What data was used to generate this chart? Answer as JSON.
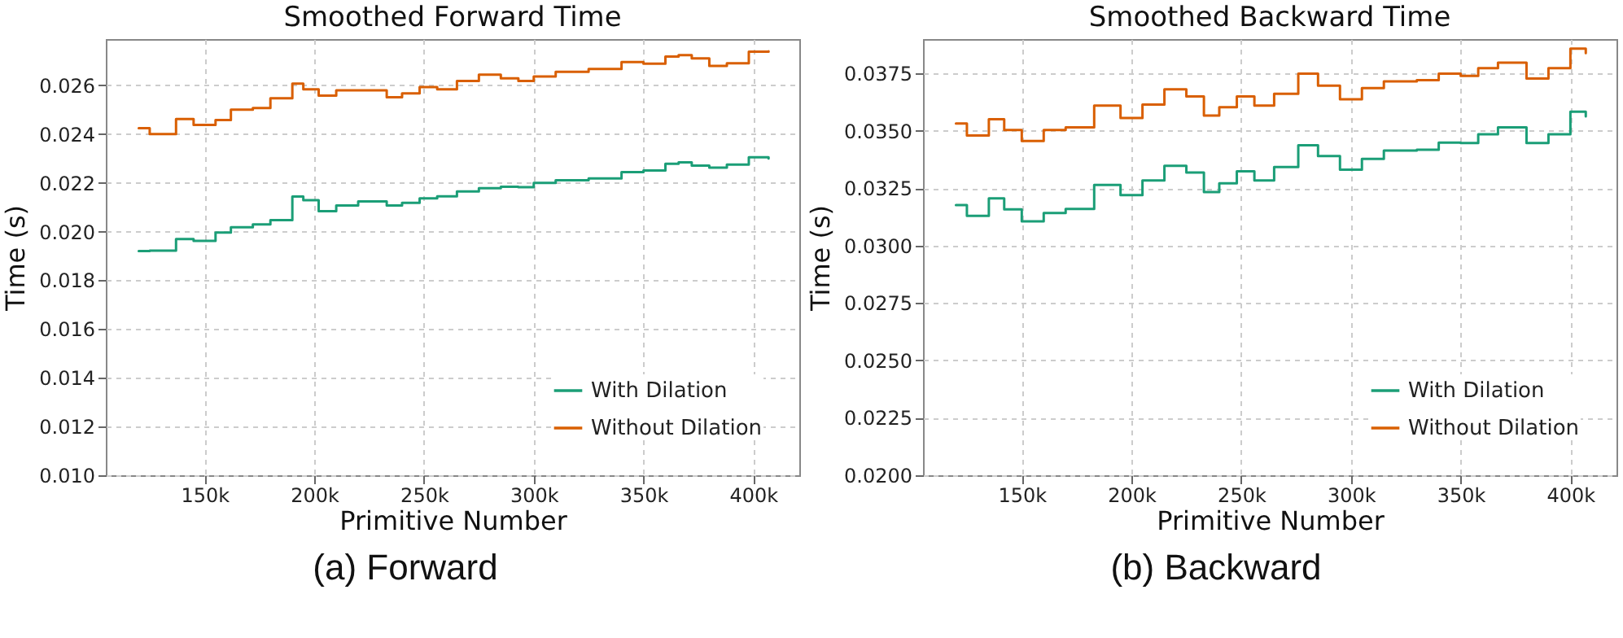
{
  "chart_data": [
    {
      "type": "step",
      "title": "Smoothed Forward Time",
      "xlabel": "Primitive Number",
      "ylabel": "Time (s)",
      "annotations": [
        "(a) Forward"
      ],
      "x": [
        120000,
        125000,
        137000,
        145000,
        155000,
        162000,
        172000,
        180000,
        190000,
        195000,
        202000,
        210000,
        220000,
        233000,
        240000,
        248000,
        256000,
        265000,
        275000,
        285000,
        293000,
        300000,
        310000,
        325000,
        340000,
        350000,
        360000,
        366000,
        372000,
        380000,
        388000,
        398000,
        407000
      ],
      "series": [
        {
          "name": "With Dilation",
          "color": "#1b9e77",
          "values": [
            0.0192,
            0.01922,
            0.01969,
            0.01962,
            0.01996,
            0.02018,
            0.02029,
            0.02047,
            0.02144,
            0.02129,
            0.02084,
            0.02107,
            0.02124,
            0.02107,
            0.02118,
            0.02136,
            0.02145,
            0.02165,
            0.02178,
            0.02184,
            0.02182,
            0.022,
            0.02211,
            0.02218,
            0.02244,
            0.02251,
            0.02278,
            0.02284,
            0.02271,
            0.02262,
            0.02275,
            0.02305,
            0.023
          ]
        },
        {
          "name": "Without Dilation",
          "color": "#d95f02",
          "values": [
            0.02424,
            0.024,
            0.02462,
            0.02438,
            0.02458,
            0.025,
            0.02507,
            0.02547,
            0.02607,
            0.02584,
            0.02558,
            0.0258,
            0.0258,
            0.02551,
            0.02567,
            0.02593,
            0.02584,
            0.02618,
            0.02644,
            0.02629,
            0.02618,
            0.02636,
            0.02656,
            0.02667,
            0.02696,
            0.02689,
            0.02718,
            0.02724,
            0.02711,
            0.0268,
            0.02691,
            0.02738,
            0.0274
          ]
        }
      ],
      "xlim": [
        105000,
        421000
      ],
      "xticks": [
        {
          "value": 150000,
          "label": "150k"
        },
        {
          "value": 200000,
          "label": "200k"
        },
        {
          "value": 250000,
          "label": "250k"
        },
        {
          "value": 300000,
          "label": "300k"
        },
        {
          "value": 350000,
          "label": "350k"
        },
        {
          "value": 400000,
          "label": "400k"
        }
      ],
      "ylim": [
        0.01,
        0.0279
      ],
      "yticks": [
        {
          "value": 0.01,
          "label": "0.010"
        },
        {
          "value": 0.012,
          "label": "0.012"
        },
        {
          "value": 0.014,
          "label": "0.014"
        },
        {
          "value": 0.016,
          "label": "0.016"
        },
        {
          "value": 0.018,
          "label": "0.018"
        },
        {
          "value": 0.02,
          "label": "0.020"
        },
        {
          "value": 0.022,
          "label": "0.022"
        },
        {
          "value": 0.024,
          "label": "0.024"
        },
        {
          "value": 0.026,
          "label": "0.026"
        }
      ],
      "grid": true,
      "legend": "bottom right"
    },
    {
      "type": "step",
      "title": "Smoothed Backward Time",
      "xlabel": "Primitive Number",
      "ylabel": "Time (s)",
      "annotations": [
        "(b) Backward"
      ],
      "x": [
        120000,
        125000,
        135000,
        142000,
        150000,
        160000,
        170000,
        183000,
        195000,
        205000,
        215000,
        225000,
        233000,
        240000,
        248000,
        256000,
        265000,
        276000,
        285000,
        295000,
        305000,
        315000,
        330000,
        340000,
        350000,
        358000,
        367000,
        380000,
        390000,
        400000,
        407000
      ],
      "series": [
        {
          "name": "With Dilation",
          "color": "#1b9e77",
          "values": [
            0.03177,
            0.0313,
            0.03206,
            0.03158,
            0.03106,
            0.03142,
            0.0316,
            0.03265,
            0.0322,
            0.03284,
            0.03348,
            0.03319,
            0.03234,
            0.03272,
            0.03324,
            0.03284,
            0.03343,
            0.03437,
            0.0339,
            0.03331,
            0.03378,
            0.03414,
            0.03418,
            0.03449,
            0.03447,
            0.03485,
            0.03515,
            0.03447,
            0.03485,
            0.03584,
            0.03563
          ]
        },
        {
          "name": "Without Dilation",
          "color": "#d95f02",
          "values": [
            0.03532,
            0.0348,
            0.03551,
            0.03504,
            0.03456,
            0.03504,
            0.03515,
            0.0361,
            0.03556,
            0.03615,
            0.03681,
            0.0365,
            0.03567,
            0.03603,
            0.0365,
            0.0361,
            0.03662,
            0.03749,
            0.03697,
            0.03638,
            0.03686,
            0.03716,
            0.03721,
            0.03749,
            0.0374,
            0.03773,
            0.03797,
            0.03728,
            0.03773,
            0.03858,
            0.03839
          ]
        }
      ],
      "xlim": [
        105000,
        421000
      ],
      "xticks": [
        {
          "value": 150000,
          "label": "150k"
        },
        {
          "value": 200000,
          "label": "200k"
        },
        {
          "value": 250000,
          "label": "250k"
        },
        {
          "value": 300000,
          "label": "300k"
        },
        {
          "value": 350000,
          "label": "350k"
        },
        {
          "value": 400000,
          "label": "400k"
        }
      ],
      "ylim": [
        0.02,
        0.039
      ],
      "yticks": [
        {
          "value": 0.02,
          "label": "0.0200"
        },
        {
          "value": 0.0225,
          "label": "0.0225"
        },
        {
          "value": 0.025,
          "label": "0.0250"
        },
        {
          "value": 0.0275,
          "label": "0.0275"
        },
        {
          "value": 0.03,
          "label": "0.0300"
        },
        {
          "value": 0.0325,
          "label": "0.0325"
        },
        {
          "value": 0.035,
          "label": "0.0350"
        },
        {
          "value": 0.0375,
          "label": "0.0375"
        }
      ],
      "grid": true,
      "legend": "bottom right"
    }
  ]
}
